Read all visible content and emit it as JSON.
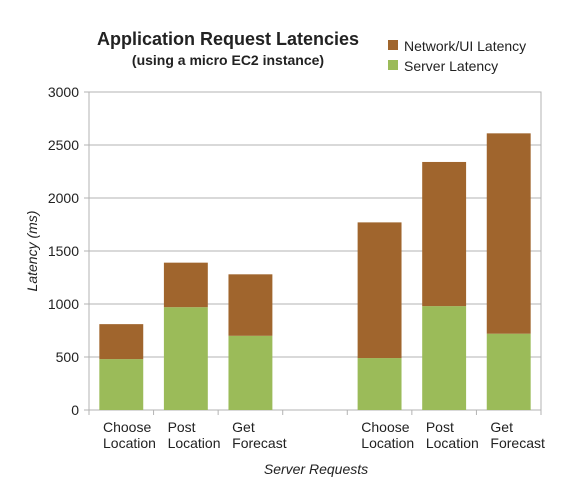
{
  "chart_data": {
    "type": "bar",
    "stacked": true,
    "title": "Application Request Latencies",
    "subtitle": "(using a micro EC2 instance)",
    "xlabel": "Server Requests",
    "ylabel": "Latency (ms)",
    "ylim": [
      0,
      3000
    ],
    "yticks": [
      0,
      500,
      1000,
      1500,
      2000,
      2500,
      3000
    ],
    "grid": true,
    "legend_position": "top-right",
    "categories": [
      [
        "Choose",
        "Location"
      ],
      [
        "Post",
        "Location"
      ],
      [
        "Get",
        "Forecast"
      ],
      [
        "",
        ""
      ],
      [
        "Choose",
        "Location"
      ],
      [
        "Post",
        "Location"
      ],
      [
        "Get",
        "Forecast"
      ]
    ],
    "series": [
      {
        "name": "Server Latency",
        "color": "#9bbb59",
        "values": [
          480,
          970,
          700,
          null,
          490,
          980,
          720
        ]
      },
      {
        "name": "Network/UI Latency",
        "color": "#a0652d",
        "values": [
          330,
          420,
          580,
          null,
          1280,
          1360,
          1890
        ]
      }
    ]
  }
}
